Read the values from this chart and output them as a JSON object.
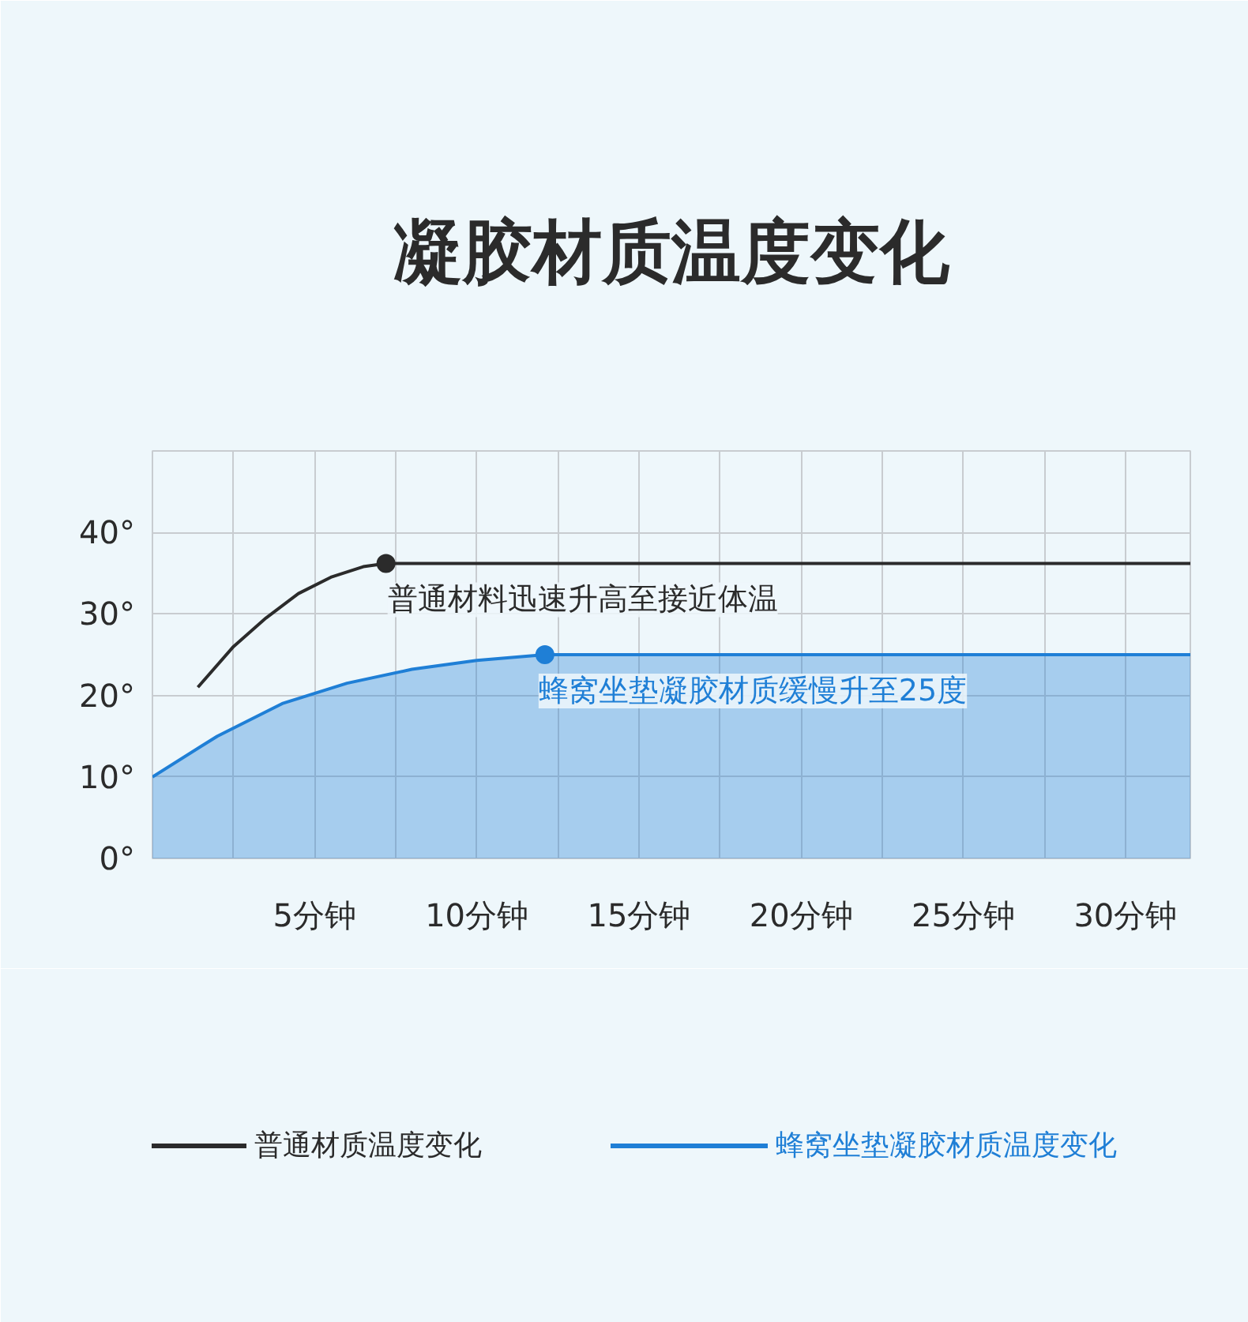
{
  "chart_data": {
    "type": "line",
    "title": "凝胶材质温度变化",
    "xlim": [
      0,
      32
    ],
    "ylim": [
      0,
      50
    ],
    "xticks": [
      {
        "value": 2.5,
        "label": null
      },
      {
        "value": 5,
        "label": "5分钟"
      },
      {
        "value": 7.5,
        "label": null
      },
      {
        "value": 10,
        "label": "10分钟"
      },
      {
        "value": 12.5,
        "label": null
      },
      {
        "value": 15,
        "label": "15分钟"
      },
      {
        "value": 17.5,
        "label": null
      },
      {
        "value": 20,
        "label": "20分钟"
      },
      {
        "value": 22.5,
        "label": null
      },
      {
        "value": 25,
        "label": "25分钟"
      },
      {
        "value": 27.5,
        "label": null
      },
      {
        "value": 30,
        "label": "30分钟"
      }
    ],
    "yticks": [
      {
        "value": 0,
        "label": "0°"
      },
      {
        "value": 10,
        "label": "10°"
      },
      {
        "value": 20,
        "label": "20°"
      },
      {
        "value": 30,
        "label": "30°"
      },
      {
        "value": 40,
        "label": "40°"
      }
    ],
    "grid": true,
    "legend": "bottom",
    "series": [
      {
        "name": "普通材质温度变化",
        "color": "#2b2b2b",
        "x": [
          1.4,
          2.5,
          3.5,
          4.5,
          5.5,
          6.5,
          7.2,
          32
        ],
        "values": [
          21,
          26,
          29.5,
          32.5,
          34.5,
          35.8,
          36.2,
          36.2
        ]
      },
      {
        "name": "蜂窝坐垫凝胶材质温度变化",
        "color": "#1f7fd6",
        "type": "area",
        "x": [
          0,
          2,
          4,
          6,
          8,
          10,
          12.1,
          32
        ],
        "values": [
          10,
          15,
          19,
          21.5,
          23.2,
          24.3,
          25,
          25
        ]
      }
    ],
    "annotations": [
      {
        "text": "普通材料迅速升高至接近体温",
        "x": 7.2,
        "y": 36.2
      },
      {
        "text": "蜂窝坐垫凝胶材质缓慢升至25度",
        "x": 12.1,
        "y": 25
      }
    ]
  }
}
